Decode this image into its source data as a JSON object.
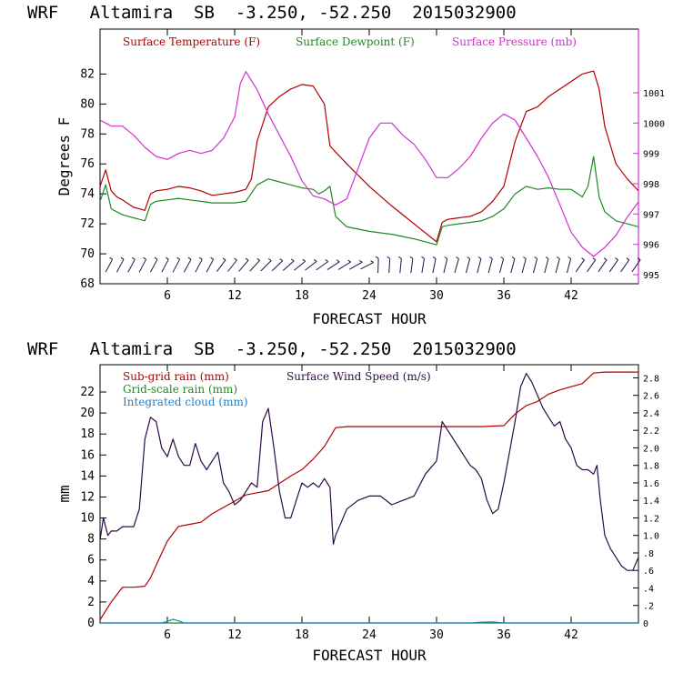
{
  "chart_data": [
    {
      "type": "line",
      "title": "WRF   Altamira  SB  -3.250, -52.250  2015032900",
      "xlabel": "FORECAST HOUR",
      "ylabel": "Degrees F",
      "xlim": [
        0,
        48
      ],
      "ylim": [
        68,
        85
      ],
      "y2lim": [
        994.7,
        1003.1
      ],
      "xticks": [
        "6",
        "12",
        "18",
        "24",
        "30",
        "36",
        "42"
      ],
      "yticks": [
        "68",
        "70",
        "72",
        "74",
        "76",
        "78",
        "80",
        "82"
      ],
      "y2ticks": [
        "995",
        "996",
        "997",
        "998",
        "999",
        "1000",
        "1001"
      ],
      "series": [
        {
          "name": "Surface Temperature (F)",
          "color": "#b00000",
          "axis": "left",
          "x": [
            0,
            0.5,
            1,
            1.5,
            2,
            3,
            3.5,
            4,
            4.5,
            5,
            6,
            7,
            8,
            9,
            10,
            11,
            12,
            13,
            13.5,
            14,
            15,
            16,
            17,
            18,
            19,
            20,
            20.5,
            21,
            22,
            24,
            26,
            28,
            30,
            30.5,
            31,
            32,
            33,
            34,
            35,
            36,
            37,
            38,
            39,
            40,
            41,
            42,
            43,
            44,
            44.5,
            45,
            46,
            47,
            48
          ],
          "values": [
            74.5,
            75.6,
            74.2,
            73.8,
            73.6,
            73.1,
            73.0,
            72.9,
            74.0,
            74.2,
            74.3,
            74.5,
            74.4,
            74.2,
            73.9,
            74.0,
            74.1,
            74.3,
            75.0,
            77.5,
            79.8,
            80.5,
            81.0,
            81.3,
            81.2,
            80.0,
            77.2,
            76.8,
            76.0,
            74.5,
            73.2,
            72.0,
            70.8,
            72.1,
            72.3,
            72.4,
            72.5,
            72.8,
            73.5,
            74.5,
            77.5,
            79.5,
            79.8,
            80.5,
            81.0,
            81.5,
            82.0,
            82.2,
            81.0,
            78.5,
            76.0,
            75.0,
            74.2
          ]
        },
        {
          "name": "Surface Dewpoint (F)",
          "color": "#1e8a1e",
          "axis": "left",
          "x": [
            0,
            0.5,
            1,
            1.5,
            2,
            3,
            3.5,
            4,
            4.5,
            5,
            6,
            7,
            8,
            9,
            10,
            11,
            12,
            13,
            14,
            15,
            16,
            17,
            18,
            19,
            19.5,
            20,
            20.5,
            21,
            22,
            24,
            26,
            28,
            30,
            30.5,
            31,
            32,
            33,
            34,
            35,
            36,
            37,
            38,
            39,
            40,
            41,
            42,
            43,
            43.5,
            44,
            44.5,
            45,
            46,
            47,
            48
          ],
          "values": [
            73.5,
            74.6,
            73.0,
            72.8,
            72.6,
            72.4,
            72.3,
            72.2,
            73.3,
            73.5,
            73.6,
            73.7,
            73.6,
            73.5,
            73.4,
            73.4,
            73.4,
            73.5,
            74.6,
            75.0,
            74.8,
            74.6,
            74.4,
            74.3,
            74.0,
            74.2,
            74.5,
            72.5,
            71.8,
            71.5,
            71.3,
            71.0,
            70.6,
            71.8,
            71.9,
            72.0,
            72.1,
            72.2,
            72.5,
            73.0,
            74.0,
            74.5,
            74.3,
            74.4,
            74.3,
            74.3,
            73.8,
            74.5,
            76.5,
            73.8,
            72.8,
            72.2,
            72.0,
            71.8
          ]
        },
        {
          "name": "Surface Pressure (mb)",
          "color": "#d030d0",
          "axis": "right",
          "x": [
            0,
            0.5,
            1,
            2,
            3,
            4,
            5,
            6,
            7,
            8,
            9,
            10,
            11,
            12,
            12.5,
            13,
            14,
            15,
            16,
            17,
            18,
            19,
            20,
            21,
            22,
            23,
            24,
            25,
            26,
            27,
            28,
            29,
            30,
            31,
            32,
            33,
            34,
            35,
            36,
            37,
            38,
            39,
            40,
            41,
            42,
            43,
            44,
            45,
            46,
            47,
            48
          ],
          "values": [
            1000.1,
            1000.0,
            999.9,
            999.9,
            999.6,
            999.2,
            998.9,
            998.8,
            999.0,
            999.1,
            999.0,
            999.1,
            999.5,
            1000.2,
            1001.3,
            1001.7,
            1001.1,
            1000.3,
            999.6,
            998.9,
            998.1,
            997.6,
            997.5,
            997.3,
            997.5,
            998.5,
            999.5,
            1000.0,
            1000.0,
            999.6,
            999.3,
            998.8,
            998.2,
            998.2,
            998.5,
            998.9,
            999.5,
            1000.0,
            1000.3,
            1000.1,
            999.5,
            998.9,
            998.2,
            997.3,
            996.4,
            995.9,
            995.6,
            995.9,
            996.3,
            996.9,
            997.4
          ]
        }
      ],
      "wind_barbs_count": 48
    },
    {
      "type": "line",
      "title": "WRF   Altamira  SB  -3.250, -52.250  2015032900",
      "xlabel": "FORECAST HOUR",
      "ylabel": "mm",
      "xlim": [
        0,
        48
      ],
      "ylim": [
        0,
        24.6
      ],
      "y2lim": [
        0,
        2.95
      ],
      "xticks": [
        "6",
        "12",
        "18",
        "24",
        "30",
        "36",
        "42"
      ],
      "yticks": [
        "0",
        "2",
        "4",
        "6",
        "8",
        "10",
        "12",
        "14",
        "16",
        "18",
        "20",
        "22"
      ],
      "y2ticks": [
        "0",
        ".2",
        ".4",
        ".6",
        ".8",
        "1.0",
        "1.2",
        "1.4",
        "1.6",
        "1.8",
        "2.0",
        "2.2",
        "2.4",
        "2.6",
        "2.8"
      ],
      "series": [
        {
          "name": "Sub-grid rain (mm)",
          "color": "#b00000",
          "axis": "left",
          "x": [
            0,
            1,
            2,
            3,
            4,
            4.5,
            5,
            6,
            7,
            8,
            9,
            10,
            11,
            12,
            13,
            14,
            15,
            16,
            17,
            18,
            19,
            20,
            21,
            22,
            24,
            26,
            28,
            30,
            32,
            34,
            36,
            37,
            38,
            39,
            40,
            41,
            42,
            43,
            44,
            45,
            46,
            47,
            48
          ],
          "values": [
            0.3,
            2.0,
            3.4,
            3.4,
            3.5,
            4.3,
            5.5,
            7.8,
            9.2,
            9.4,
            9.6,
            10.4,
            11.0,
            11.6,
            12.2,
            12.4,
            12.6,
            13.3,
            14.0,
            14.6,
            15.6,
            16.8,
            18.6,
            18.7,
            18.7,
            18.7,
            18.7,
            18.7,
            18.7,
            18.7,
            18.8,
            19.9,
            20.7,
            21.1,
            21.8,
            22.2,
            22.5,
            22.8,
            23.8,
            23.9,
            23.9,
            23.9,
            23.9
          ]
        },
        {
          "name": "Grid-scale rain (mm)",
          "color": "#1e8a1e",
          "axis": "left",
          "x": [
            0,
            12,
            24,
            36,
            48
          ],
          "values": [
            0,
            0,
            0,
            0,
            0
          ]
        },
        {
          "name": "Integrated cloud (mm)",
          "color": "#1e7fc8",
          "axis": "left",
          "x": [
            0,
            5.5,
            6,
            6.5,
            7,
            7.5,
            33,
            34,
            35,
            36,
            48
          ],
          "values": [
            0,
            0,
            0.15,
            0.35,
            0.2,
            0,
            0,
            0.08,
            0.1,
            0,
            0
          ]
        },
        {
          "name": "Surface Wind Speed (m/s)",
          "color": "#2b0b45",
          "axis": "right",
          "x": [
            0,
            0.3,
            0.7,
            1,
            1.5,
            2,
            3,
            3.5,
            4,
            4.5,
            5,
            5.5,
            6,
            6.5,
            7,
            7.5,
            8,
            8.5,
            9,
            9.5,
            10,
            10.5,
            11,
            11.5,
            12,
            12.5,
            13,
            13.5,
            14,
            14.5,
            15,
            15.5,
            16,
            16.5,
            17,
            17.5,
            18,
            18.5,
            19,
            19.5,
            20,
            20.5,
            20.8,
            21,
            21.5,
            22,
            23,
            24,
            25,
            26,
            27,
            28,
            29,
            30,
            30.5,
            31,
            31.5,
            32,
            32.5,
            33,
            33.5,
            34,
            34.5,
            35,
            35.5,
            36,
            36.5,
            37,
            37.5,
            38,
            38.5,
            39,
            39.5,
            40,
            40.5,
            41,
            41.5,
            42,
            42.5,
            43,
            43.5,
            44,
            44.3,
            44.6,
            45,
            45.5,
            46,
            46.5,
            47,
            47.5,
            48
          ],
          "values": [
            0.95,
            1.2,
            1.0,
            1.05,
            1.05,
            1.1,
            1.1,
            1.3,
            2.1,
            2.35,
            2.3,
            2.0,
            1.9,
            2.1,
            1.9,
            1.8,
            1.8,
            2.05,
            1.85,
            1.75,
            1.85,
            1.95,
            1.6,
            1.5,
            1.35,
            1.4,
            1.5,
            1.6,
            1.55,
            2.3,
            2.45,
            2.0,
            1.5,
            1.2,
            1.2,
            1.4,
            1.6,
            1.55,
            1.6,
            1.55,
            1.65,
            1.55,
            0.9,
            1.0,
            1.15,
            1.3,
            1.4,
            1.45,
            1.45,
            1.35,
            1.4,
            1.45,
            1.7,
            1.85,
            2.3,
            2.2,
            2.1,
            2.0,
            1.9,
            1.8,
            1.75,
            1.65,
            1.4,
            1.25,
            1.3,
            1.6,
            1.95,
            2.3,
            2.7,
            2.85,
            2.75,
            2.6,
            2.45,
            2.35,
            2.25,
            2.3,
            2.1,
            2.0,
            1.8,
            1.75,
            1.75,
            1.7,
            1.8,
            1.4,
            1.0,
            0.85,
            0.75,
            0.65,
            0.6,
            0.6,
            0.75
          ]
        }
      ]
    }
  ]
}
